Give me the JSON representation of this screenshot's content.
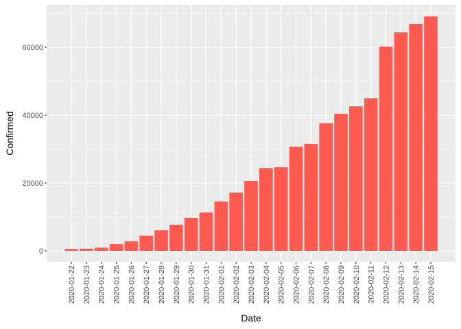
{
  "chart_data": {
    "type": "bar",
    "title": "",
    "xlabel": "Date",
    "ylabel": "Confirmed",
    "ylim": [
      -3300,
      72500
    ],
    "yticks": [
      0,
      20000,
      40000,
      60000
    ],
    "ytick_labels": [
      "0",
      "20000",
      "40000",
      "60000"
    ],
    "grid": true,
    "legend": null,
    "bar_color": "#F8766D",
    "categories": [
      "2020-01-22",
      "2020-01-23",
      "2020-01-24",
      "2020-01-25",
      "2020-01-26",
      "2020-01-27",
      "2020-01-28",
      "2020-01-29",
      "2020-01-30",
      "2020-01-31",
      "2020-02-01",
      "2020-02-02",
      "2020-02-03",
      "2020-02-04",
      "2020-02-05",
      "2020-02-06",
      "2020-02-07",
      "2020-02-08",
      "2020-02-09",
      "2020-02-10",
      "2020-02-11",
      "2020-02-12",
      "2020-02-13",
      "2020-02-14",
      "2020-02-15"
    ],
    "values": [
      555,
      653,
      941,
      2000,
      2800,
      4500,
      6060,
      7700,
      9700,
      11300,
      14550,
      17200,
      20600,
      24400,
      24650,
      30700,
      31500,
      37600,
      40400,
      42600,
      45000,
      60200,
      64400,
      66900,
      69100
    ]
  },
  "style": {
    "panel_bg": "#EBEBEB",
    "grid_major": "#FFFFFF",
    "grid_minor": "#F5F5F5",
    "bar_fill": "#FF5A50",
    "tick_color": "#333333"
  }
}
